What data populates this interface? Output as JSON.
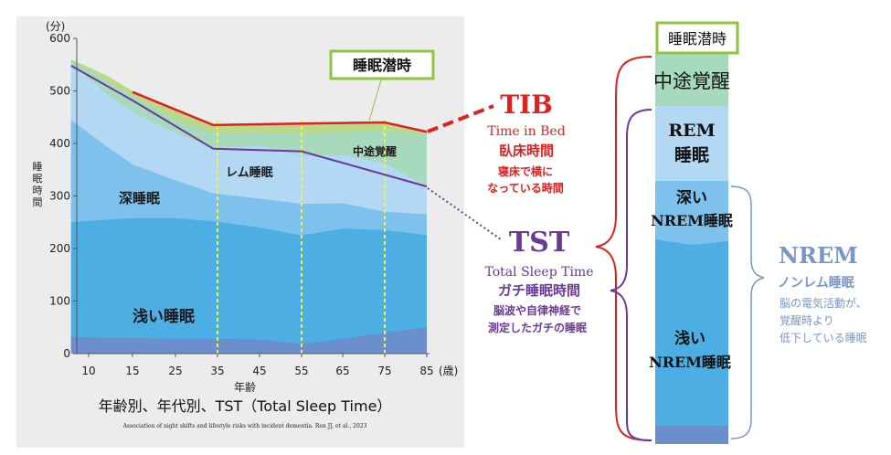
{
  "chart_data": {
    "type": "area",
    "title": "年齢別、年代別、TST（Total Sleep Time）",
    "citation": "Association of night shifts and lifestyle risks with incident dementia. Ren JJ, et al., 2023",
    "y_unit": "(分)",
    "ylabel": "睡眠時間",
    "xlabel": "年齢",
    "x_unit": "(歳)",
    "ylim": [
      0,
      600
    ],
    "yticks": [
      "0",
      "100",
      "200",
      "300",
      "400",
      "500",
      "600"
    ],
    "xticks": [
      "10",
      "15",
      "25",
      "35",
      "45",
      "55",
      "65",
      "75",
      "85"
    ],
    "dashed_x": [
      35,
      55,
      75
    ],
    "x": [
      8,
      12,
      15,
      25,
      34,
      45,
      55,
      65,
      75,
      85
    ],
    "series": [
      {
        "name": "浅い睡眠",
        "color": "#6b8fcc",
        "values": [
          32,
          30,
          30,
          28,
          28,
          27,
          18,
          28,
          40,
          50
        ]
      },
      {
        "name": "浅い睡眠",
        "color": "#4daee3",
        "values": [
          250,
          255,
          258,
          258,
          252,
          240,
          225,
          238,
          235,
          226
        ]
      },
      {
        "name": "深睡眠",
        "color": "#7ec1ec",
        "values": [
          445,
          395,
          360,
          330,
          305,
          295,
          285,
          286,
          270,
          265
        ]
      },
      {
        "name": "レム睡眠",
        "color": "#b3d8f3",
        "values": [
          552,
          495,
          460,
          420,
          392,
          395,
          378,
          378,
          362,
          318
        ]
      },
      {
        "name": "中途覚醒",
        "color": "#a7d9bd",
        "values": [
          558,
          520,
          490,
          445,
          420,
          420,
          420,
          422,
          425,
          418
        ]
      },
      {
        "name": "睡眠潜時",
        "color": "#bcd98a",
        "values": [
          560,
          530,
          500,
          462,
          435,
          438,
          440,
          440,
          441,
          425
        ]
      }
    ],
    "TIB_line": {
      "x": [
        15,
        34,
        55,
        75,
        85
      ],
      "values": [
        498,
        435,
        438,
        440,
        422
      ],
      "color": "#e02020"
    },
    "TST_line": {
      "x": [
        8,
        15,
        34,
        55,
        85
      ],
      "values": [
        548,
        482,
        390,
        385,
        318
      ],
      "color": "#6a3a98"
    },
    "region_labels": [
      "深睡眠",
      "レム睡眠",
      "中途覚醒",
      "浅い睡眠"
    ],
    "callout_label": "睡眠潜時"
  },
  "tib": {
    "title": "TIB",
    "en": "Time in Bed",
    "jp": "臥床時間",
    "desc1": "寝床で横に",
    "desc2": "なっている時間"
  },
  "tst": {
    "title": "TST",
    "en": "Total Sleep Time",
    "jp": "ガチ睡眠時間",
    "desc1": "脳波や自律神経で",
    "desc2": "測定したガチの睡眠"
  },
  "bar": {
    "latency": "睡眠潜時",
    "wake": "中途覚醒",
    "rem1": "REM",
    "rem2": "睡眠",
    "deep1": "深い",
    "deep2": "NREM睡眠",
    "light1": "浅い",
    "light2": "NREM睡眠"
  },
  "nrem": {
    "title": "NREM",
    "jp": "ノンレム睡眠",
    "desc1": "脳の電気活動が、",
    "desc2": "覚醒時より",
    "desc3": "低下している睡眠"
  },
  "colors": {
    "tib_red": "#e02020",
    "tst_purple": "#6a3a98",
    "nrem_blue": "#7a95c9",
    "dashed_yellow": "#f2f23a"
  }
}
